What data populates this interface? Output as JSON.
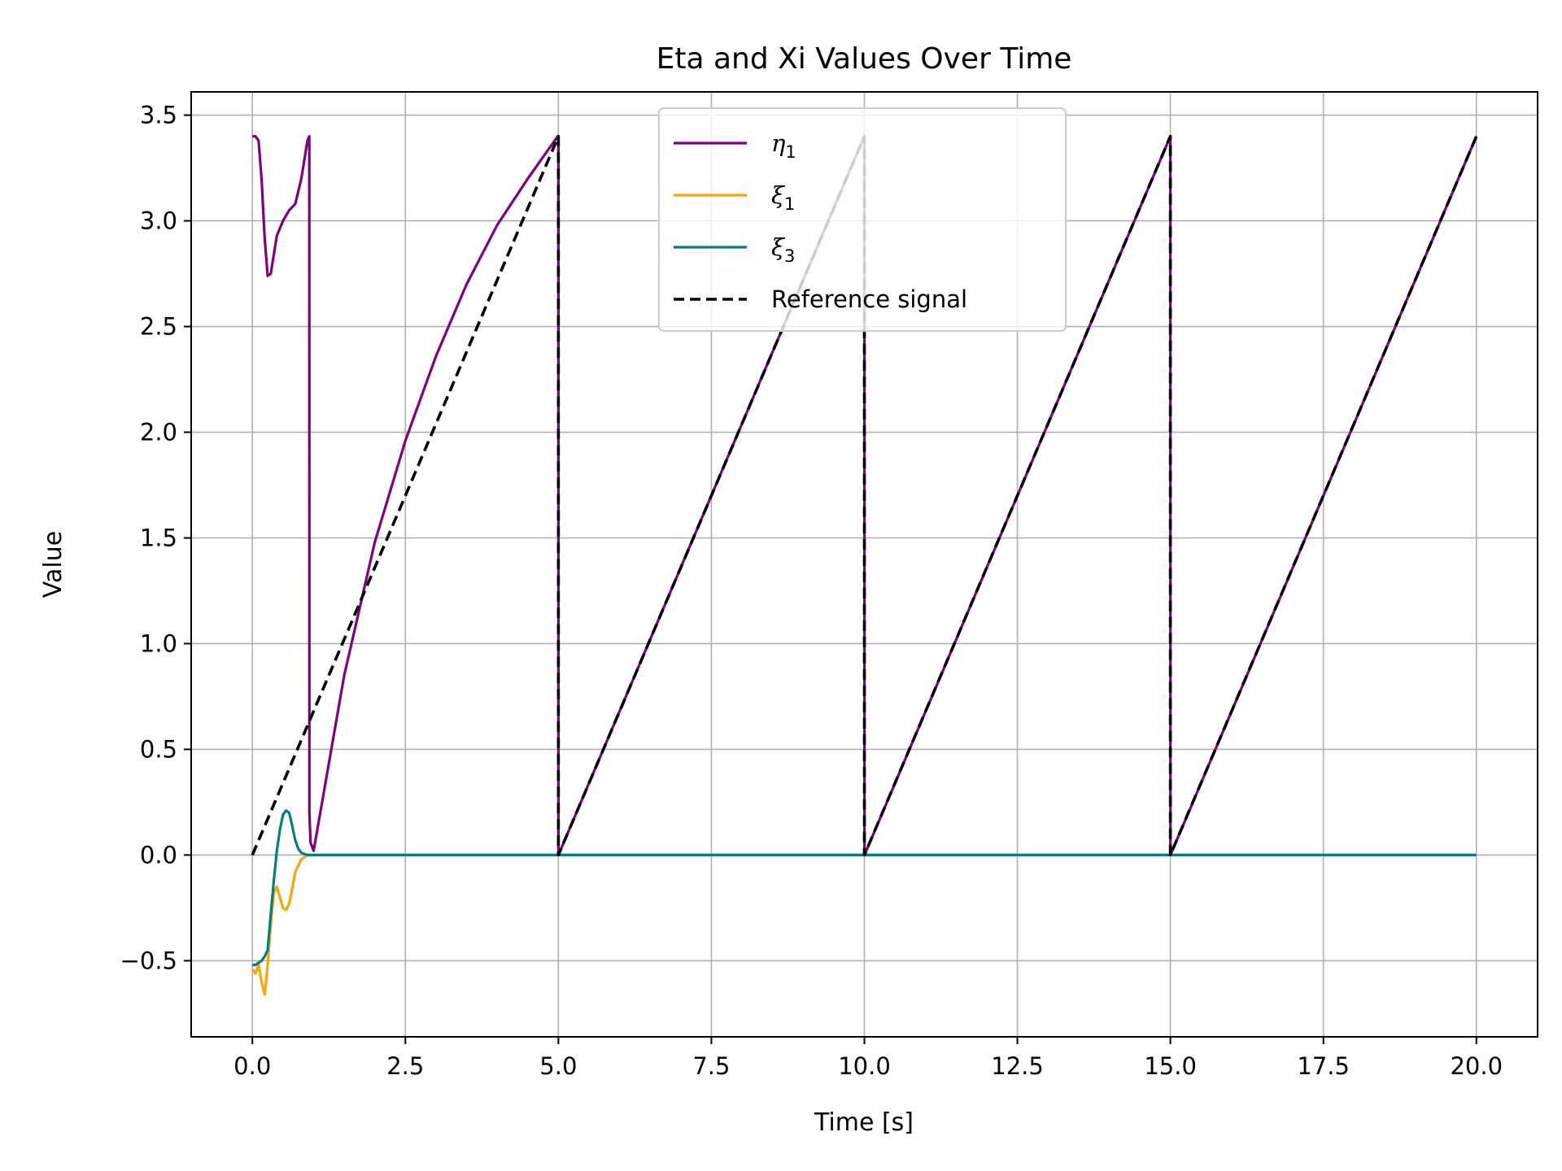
{
  "chart_data": {
    "type": "line",
    "title": "Eta and Xi Values Over Time",
    "xlabel": "Time [s]",
    "ylabel": "Value",
    "xlim": [
      -1.0,
      21.0
    ],
    "ylim": [
      -0.86,
      3.61
    ],
    "xticks": [
      0.0,
      2.5,
      5.0,
      7.5,
      10.0,
      12.5,
      15.0,
      17.5,
      20.0
    ],
    "xtick_labels": [
      "0.0",
      "2.5",
      "5.0",
      "7.5",
      "10.0",
      "12.5",
      "15.0",
      "17.5",
      "20.0"
    ],
    "yticks": [
      -0.5,
      0.0,
      0.5,
      1.0,
      1.5,
      2.0,
      2.5,
      3.0,
      3.5
    ],
    "ytick_labels": [
      "−0.5",
      "0.0",
      "0.5",
      "1.0",
      "1.5",
      "2.0",
      "2.5",
      "3.0",
      "3.5"
    ],
    "grid": true,
    "legend_position": "top-center",
    "series": [
      {
        "name": "η",
        "subscript": "1",
        "color": "#800080",
        "style": "solid",
        "x": [
          0.0,
          0.05,
          0.1,
          0.15,
          0.2,
          0.25,
          0.3,
          0.4,
          0.5,
          0.6,
          0.7,
          0.8,
          0.9,
          0.93,
          0.931,
          0.95,
          1.0,
          1.5,
          2.0,
          2.5,
          3.0,
          3.5,
          4.0,
          4.5,
          4.99,
          5.0,
          5.001,
          9.999,
          10.0,
          10.001,
          14.999,
          15.0,
          15.001,
          20.0
        ],
        "y": [
          3.4,
          3.4,
          3.38,
          3.2,
          2.92,
          2.74,
          2.75,
          2.93,
          3.0,
          3.05,
          3.08,
          3.2,
          3.38,
          3.4,
          0.2,
          0.06,
          0.02,
          0.85,
          1.48,
          1.96,
          2.36,
          2.7,
          2.98,
          3.2,
          3.4,
          3.4,
          0.0,
          3.4,
          3.4,
          0.0,
          3.4,
          3.4,
          0.0,
          3.4
        ]
      },
      {
        "name": "ξ",
        "subscript": "1",
        "color": "#ffa500",
        "style": "solid",
        "x": [
          0.0,
          0.05,
          0.1,
          0.15,
          0.2,
          0.25,
          0.3,
          0.35,
          0.4,
          0.45,
          0.5,
          0.55,
          0.6,
          0.65,
          0.7,
          0.8,
          0.9,
          1.0,
          1.2,
          20.0
        ],
        "y": [
          -0.54,
          -0.56,
          -0.52,
          -0.6,
          -0.66,
          -0.52,
          -0.33,
          -0.18,
          -0.15,
          -0.2,
          -0.25,
          -0.26,
          -0.23,
          -0.16,
          -0.08,
          -0.02,
          0.0,
          0.0,
          0.0,
          0.0
        ]
      },
      {
        "name": "ξ",
        "subscript": "3",
        "color": "#008080",
        "style": "solid",
        "x": [
          0.0,
          0.05,
          0.1,
          0.15,
          0.2,
          0.25,
          0.3,
          0.35,
          0.4,
          0.45,
          0.5,
          0.55,
          0.6,
          0.65,
          0.7,
          0.75,
          0.8,
          0.9,
          1.0,
          20.0
        ],
        "y": [
          -0.52,
          -0.52,
          -0.51,
          -0.5,
          -0.48,
          -0.45,
          -0.28,
          -0.12,
          0.02,
          0.12,
          0.19,
          0.21,
          0.2,
          0.14,
          0.07,
          0.03,
          0.01,
          0.0,
          0.0,
          0.0
        ]
      },
      {
        "name": "Reference signal",
        "subscript": "",
        "color": "#000000",
        "style": "dashed",
        "x": [
          0.0,
          5.0,
          5.0,
          10.0,
          10.0,
          15.0,
          15.0,
          20.0
        ],
        "y": [
          0.0,
          3.4,
          0.0,
          3.4,
          0.0,
          3.4,
          0.0,
          3.4
        ]
      }
    ]
  }
}
